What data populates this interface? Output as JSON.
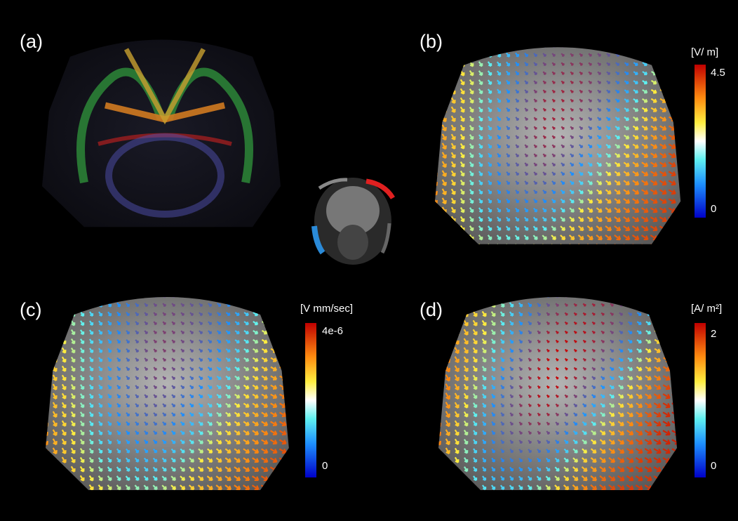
{
  "panels": [
    {
      "label": "(a)"
    },
    {
      "label": "(b)",
      "colorbar": {
        "unit": "[V/ m]",
        "max": "4.5",
        "min": "0"
      }
    },
    {
      "label": "(c)",
      "colorbar": {
        "unit": "[V mm/sec]",
        "max": "4e-6",
        "min": "0"
      }
    },
    {
      "label": "(d)",
      "colorbar": {
        "unit": "[A/ m²]",
        "max": "2",
        "min": "0"
      }
    }
  ]
}
